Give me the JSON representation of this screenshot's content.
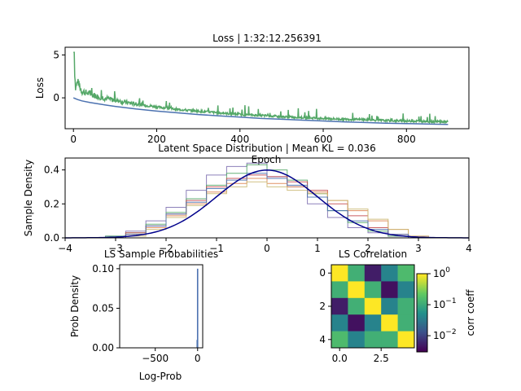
{
  "chart_data": [
    {
      "type": "line",
      "title": "Loss | 1:32:12.256391",
      "xlabel": "Epoch",
      "ylabel": "Loss",
      "xlim": [
        -20,
        950
      ],
      "ylim": [
        -3.6,
        5.9
      ],
      "xticks": [
        0,
        200,
        400,
        600,
        800
      ],
      "yticks": [
        -5,
        0,
        5
      ],
      "ytick_labels_visible": [
        "0",
        "5"
      ],
      "series": [
        {
          "color": "#55a868",
          "style": "noisy",
          "x": [
            0,
            5,
            10,
            20,
            40,
            60,
            80,
            100,
            150,
            200,
            250,
            300,
            350,
            400,
            450,
            500,
            550,
            600,
            650,
            700,
            750,
            800,
            850,
            900
          ],
          "values": [
            5.3,
            0.9,
            1.8,
            0.6,
            0.3,
            0.0,
            -0.2,
            -0.4,
            -0.8,
            -1.1,
            -1.4,
            -1.6,
            -1.8,
            -2.0,
            -2.1,
            -2.25,
            -2.35,
            -2.45,
            -2.55,
            -2.6,
            -2.7,
            -2.75,
            -2.8,
            -2.85
          ]
        },
        {
          "color": "#4c72b0",
          "style": "smooth",
          "x": [
            0,
            5,
            10,
            20,
            40,
            60,
            80,
            100,
            150,
            200,
            250,
            300,
            350,
            400,
            450,
            500,
            550,
            600,
            650,
            700,
            750,
            800,
            850,
            900
          ],
          "values": [
            0.0,
            -0.1,
            -0.2,
            -0.35,
            -0.55,
            -0.7,
            -0.85,
            -1.0,
            -1.3,
            -1.55,
            -1.75,
            -1.95,
            -2.1,
            -2.25,
            -2.4,
            -2.5,
            -2.6,
            -2.7,
            -2.8,
            -2.88,
            -2.95,
            -3.0,
            -3.05,
            -3.1
          ]
        }
      ]
    },
    {
      "type": "line",
      "title": "Latent Space Distribution | Mean KL = 0.036",
      "xlabel": "",
      "ylabel": "Sample Density",
      "xlim": [
        -4,
        4
      ],
      "ylim": [
        0,
        0.47
      ],
      "xticks": [
        -4,
        -3,
        -2,
        -1,
        0,
        1,
        2,
        3,
        4
      ],
      "yticks": [
        0.0,
        0.2,
        0.4
      ],
      "bin_edges": [
        -3.2,
        -2.8,
        -2.4,
        -2.0,
        -1.6,
        -1.2,
        -0.8,
        -0.4,
        0.0,
        0.4,
        0.8,
        1.2,
        1.6,
        2.0,
        2.4,
        2.8,
        3.2
      ],
      "series": [
        {
          "color": "#8172b3",
          "values": [
            0.01,
            0.04,
            0.1,
            0.18,
            0.28,
            0.37,
            0.42,
            0.44,
            0.36,
            0.3,
            0.2,
            0.12,
            0.06,
            0.03,
            0.01,
            0.0
          ]
        },
        {
          "color": "#55a868",
          "values": [
            0.01,
            0.03,
            0.08,
            0.15,
            0.23,
            0.31,
            0.38,
            0.43,
            0.4,
            0.34,
            0.26,
            0.16,
            0.09,
            0.04,
            0.01,
            0.0
          ]
        },
        {
          "color": "#c44e52",
          "values": [
            0.0,
            0.03,
            0.07,
            0.14,
            0.22,
            0.3,
            0.35,
            0.37,
            0.36,
            0.33,
            0.28,
            0.2,
            0.13,
            0.06,
            0.02,
            0.0
          ]
        },
        {
          "color": "#dd8452",
          "values": [
            0.0,
            0.02,
            0.06,
            0.13,
            0.2,
            0.27,
            0.32,
            0.35,
            0.32,
            0.3,
            0.27,
            0.22,
            0.16,
            0.1,
            0.05,
            0.01
          ]
        },
        {
          "color": "#ccb974",
          "values": [
            0.0,
            0.01,
            0.05,
            0.12,
            0.19,
            0.26,
            0.3,
            0.33,
            0.3,
            0.28,
            0.26,
            0.22,
            0.17,
            0.11,
            0.05,
            0.01
          ]
        },
        {
          "color": "#4c72b0",
          "values": [
            0.0,
            0.02,
            0.07,
            0.14,
            0.21,
            0.29,
            0.34,
            0.38,
            0.35,
            0.31,
            0.24,
            0.16,
            0.1,
            0.05,
            0.02,
            0.0
          ]
        }
      ],
      "reference_curve": {
        "color": "#00008b",
        "mean": 0,
        "std": 1
      }
    },
    {
      "type": "bar",
      "title": "LS Sample Probabilities",
      "xlabel": "Log-Prob",
      "ylabel": "Prob Density",
      "xlim": [
        -920,
        60
      ],
      "ylim": [
        0,
        0.105
      ],
      "xticks": [
        -500,
        0
      ],
      "yticks": [
        0.0,
        0.05,
        0.1
      ],
      "bars": [
        {
          "x": 0,
          "value": 0.1
        },
        {
          "x": -5,
          "value": 0.01
        }
      ]
    },
    {
      "type": "heatmap",
      "title": "LS Correlation",
      "xticks": [
        0.0,
        2.5
      ],
      "yticks": [
        0,
        2,
        4
      ],
      "colorbar_label": "corr coeff",
      "colorbar_ticks": [
        "10^0",
        "10^-1",
        "10^-2"
      ],
      "colorbar_range": [
        0.003,
        1.0
      ],
      "colorbar_scale": "log",
      "matrix": [
        [
          1.0,
          0.12,
          0.005,
          0.04,
          0.16
        ],
        [
          0.12,
          1.0,
          0.12,
          0.004,
          0.04
        ],
        [
          0.005,
          0.12,
          1.0,
          0.04,
          0.12
        ],
        [
          0.04,
          0.004,
          0.04,
          1.0,
          0.12
        ],
        [
          0.16,
          0.04,
          0.12,
          0.12,
          1.0
        ]
      ]
    }
  ]
}
